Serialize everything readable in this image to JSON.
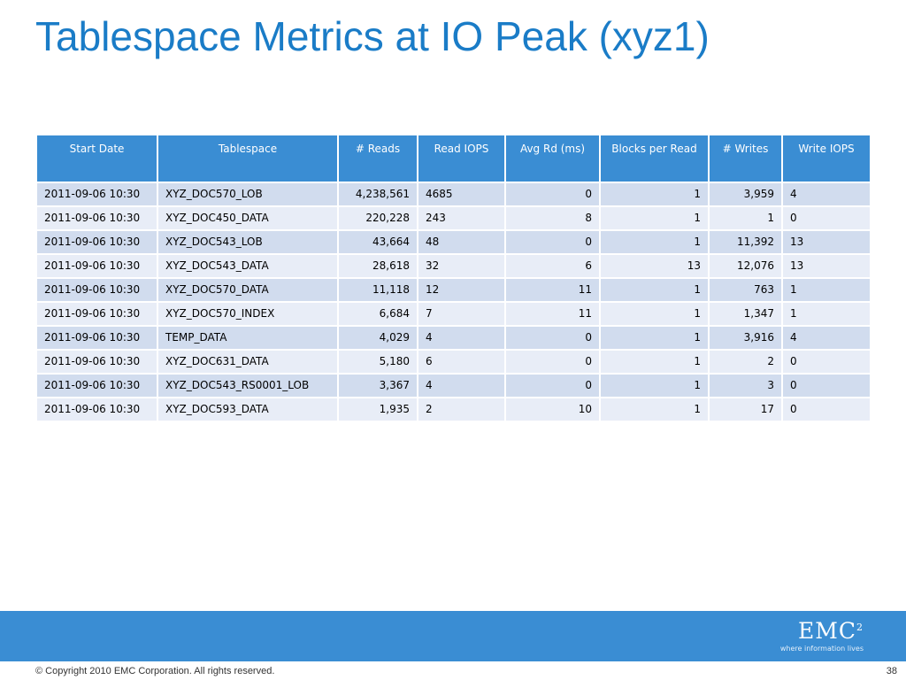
{
  "title": "Tablespace Metrics at IO Peak (xyz1)",
  "table": {
    "headers": [
      "Start Date",
      "Tablespace",
      "# Reads",
      "Read IOPS",
      "Avg Rd (ms)",
      "Blocks per Read",
      "# Writes",
      "Write IOPS"
    ],
    "rows": [
      [
        "2011-09-06 10:30",
        "XYZ_DOC570_LOB",
        "4,238,561",
        "4685",
        "0",
        "1",
        "3,959",
        "4"
      ],
      [
        "2011-09-06 10:30",
        "XYZ_DOC450_DATA",
        "220,228",
        "243",
        "8",
        "1",
        "1",
        "0"
      ],
      [
        "2011-09-06 10:30",
        "XYZ_DOC543_LOB",
        "43,664",
        "48",
        "0",
        "1",
        "11,392",
        "13"
      ],
      [
        "2011-09-06 10:30",
        "XYZ_DOC543_DATA",
        "28,618",
        "32",
        "6",
        "13",
        "12,076",
        "13"
      ],
      [
        "2011-09-06 10:30",
        "XYZ_DOC570_DATA",
        "11,118",
        "12",
        "11",
        "1",
        "763",
        "1"
      ],
      [
        "2011-09-06 10:30",
        "XYZ_DOC570_INDEX",
        "6,684",
        "7",
        "11",
        "1",
        "1,347",
        "1"
      ],
      [
        "2011-09-06 10:30",
        "TEMP_DATA",
        "4,029",
        "4",
        "0",
        "1",
        "3,916",
        "4"
      ],
      [
        "2011-09-06 10:30",
        "XYZ_DOC631_DATA",
        "5,180",
        "6",
        "0",
        "1",
        "2",
        "0"
      ],
      [
        "2011-09-06 10:30",
        "XYZ_DOC543_RS0001_LOB",
        "3,367",
        "4",
        "0",
        "1",
        "3",
        "0"
      ],
      [
        "2011-09-06 10:30",
        "XYZ_DOC593_DATA",
        "1,935",
        "2",
        "10",
        "1",
        "17",
        "0"
      ]
    ]
  },
  "footer": {
    "logo_text": "EMC",
    "logo_sup": "2",
    "logo_tagline": "where information lives",
    "copyright": "© Copyright 2010  EMC Corporation.  All rights reserved.",
    "page_number": "38"
  },
  "colors": {
    "title": "#1a7cc7",
    "header_bg": "#3a8dd3",
    "row_odd": "#d1dcee",
    "row_even": "#e8edf7",
    "footer_band": "#3a8dd3"
  }
}
